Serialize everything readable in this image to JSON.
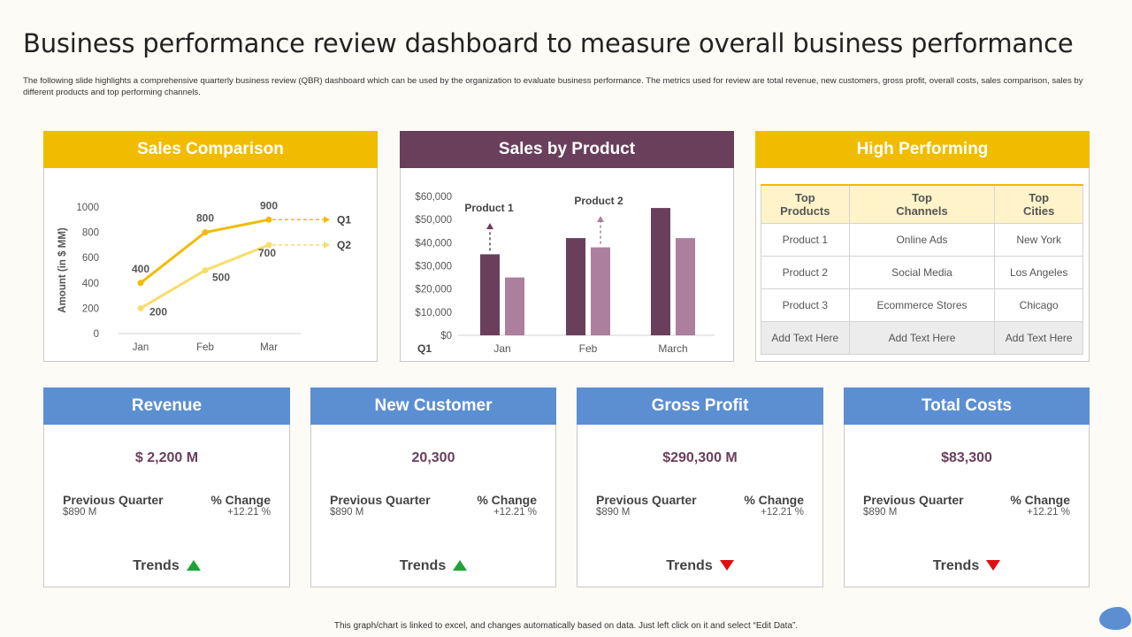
{
  "page": {
    "title": "Business performance review dashboard to measure overall business performance",
    "subtitle": "The following slide highlights a comprehensive quarterly business review (QBR) dashboard which can be used by the organization to evaluate business performance. The metrics used for review are total revenue, new customers, gross profit, overall costs, sales comparison, sales by different products and top performing channels.",
    "footer": "This graph/chart is linked to excel, and changes automatically based on data. Just left click on it and select “Edit Data”."
  },
  "sales_comparison": {
    "header": "Sales Comparison"
  },
  "sales_by_product": {
    "header": "Sales by Product"
  },
  "high_performing": {
    "header": "High Performing",
    "columns": [
      "Top\nProducts",
      "Top\nChannels",
      "Top\nCities"
    ],
    "rows": [
      [
        "Product 1",
        "Online Ads",
        "New York"
      ],
      [
        "Product 2",
        "Social Media",
        "Los Angeles"
      ],
      [
        "Product 3",
        "Ecommerce Stores",
        "Chicago"
      ],
      [
        "Add Text Here",
        "Add Text Here",
        "Add Text Here"
      ]
    ]
  },
  "kpis": [
    {
      "header": "Revenue",
      "value": "$ 2,200 M",
      "pq_label": "Previous Quarter",
      "pq_value": "$890 M",
      "ch_label": "% Change",
      "ch_value": "+12.21 %",
      "trend_label": "Trends",
      "trend": "up"
    },
    {
      "header": "New Customer",
      "value": "20,300",
      "pq_label": "Previous Quarter",
      "pq_value": "$890 M",
      "ch_label": "% Change",
      "ch_value": "+12.21 %",
      "trend_label": "Trends",
      "trend": "up"
    },
    {
      "header": "Gross Profit",
      "value": "$290,300 M",
      "pq_label": "Previous Quarter",
      "pq_value": "$890 M",
      "ch_label": "% Change",
      "ch_value": "+12.21 %",
      "trend_label": "Trends",
      "trend": "down"
    },
    {
      "header": "Total Costs",
      "value": "$83,300",
      "pq_label": "Previous Quarter",
      "pq_value": "$890 M",
      "ch_label": "% Change",
      "ch_value": "+12.21 %",
      "trend_label": "Trends",
      "trend": "down"
    }
  ],
  "colors": {
    "yellow": "#f1bc00",
    "light_yellow": "#f7dd6a",
    "purple": "#6a3f5c",
    "light_purple": "#ad7f9e",
    "blue": "#5b8fd2",
    "trend_up": "#1fa23a",
    "trend_down": "#e01010"
  },
  "chart_data": [
    {
      "type": "line",
      "categories": [
        "Jan",
        "Feb",
        "Mar"
      ],
      "series": [
        {
          "name": "Q1",
          "values": [
            400,
            800,
            900
          ]
        },
        {
          "name": "Q2",
          "values": [
            200,
            500,
            700
          ]
        }
      ],
      "ylabel": "Amount (in $ MM)",
      "ylim": [
        0,
        1000
      ],
      "yticks": [
        "0",
        "200",
        "400",
        "600",
        "800",
        "1000"
      ],
      "data_labels": {
        "Q1": [
          "400",
          "800",
          "900"
        ],
        "Q2": [
          "200",
          "500",
          "700"
        ]
      }
    },
    {
      "type": "bar",
      "categories": [
        "Jan",
        "Feb",
        "March"
      ],
      "series": [
        {
          "name": "Product 1",
          "values": [
            35000,
            42000,
            55000
          ]
        },
        {
          "name": "Product 2",
          "values": [
            25000,
            38000,
            42000
          ]
        }
      ],
      "xlabel_prefix": "Q1",
      "ylim": [
        0,
        60000
      ],
      "yticks": [
        "$0",
        "$10,000",
        "$20,000",
        "$30,000",
        "$40,000",
        "$50,000",
        "$60,000"
      ],
      "annotations": [
        "Product 1",
        "Product 2"
      ]
    }
  ]
}
